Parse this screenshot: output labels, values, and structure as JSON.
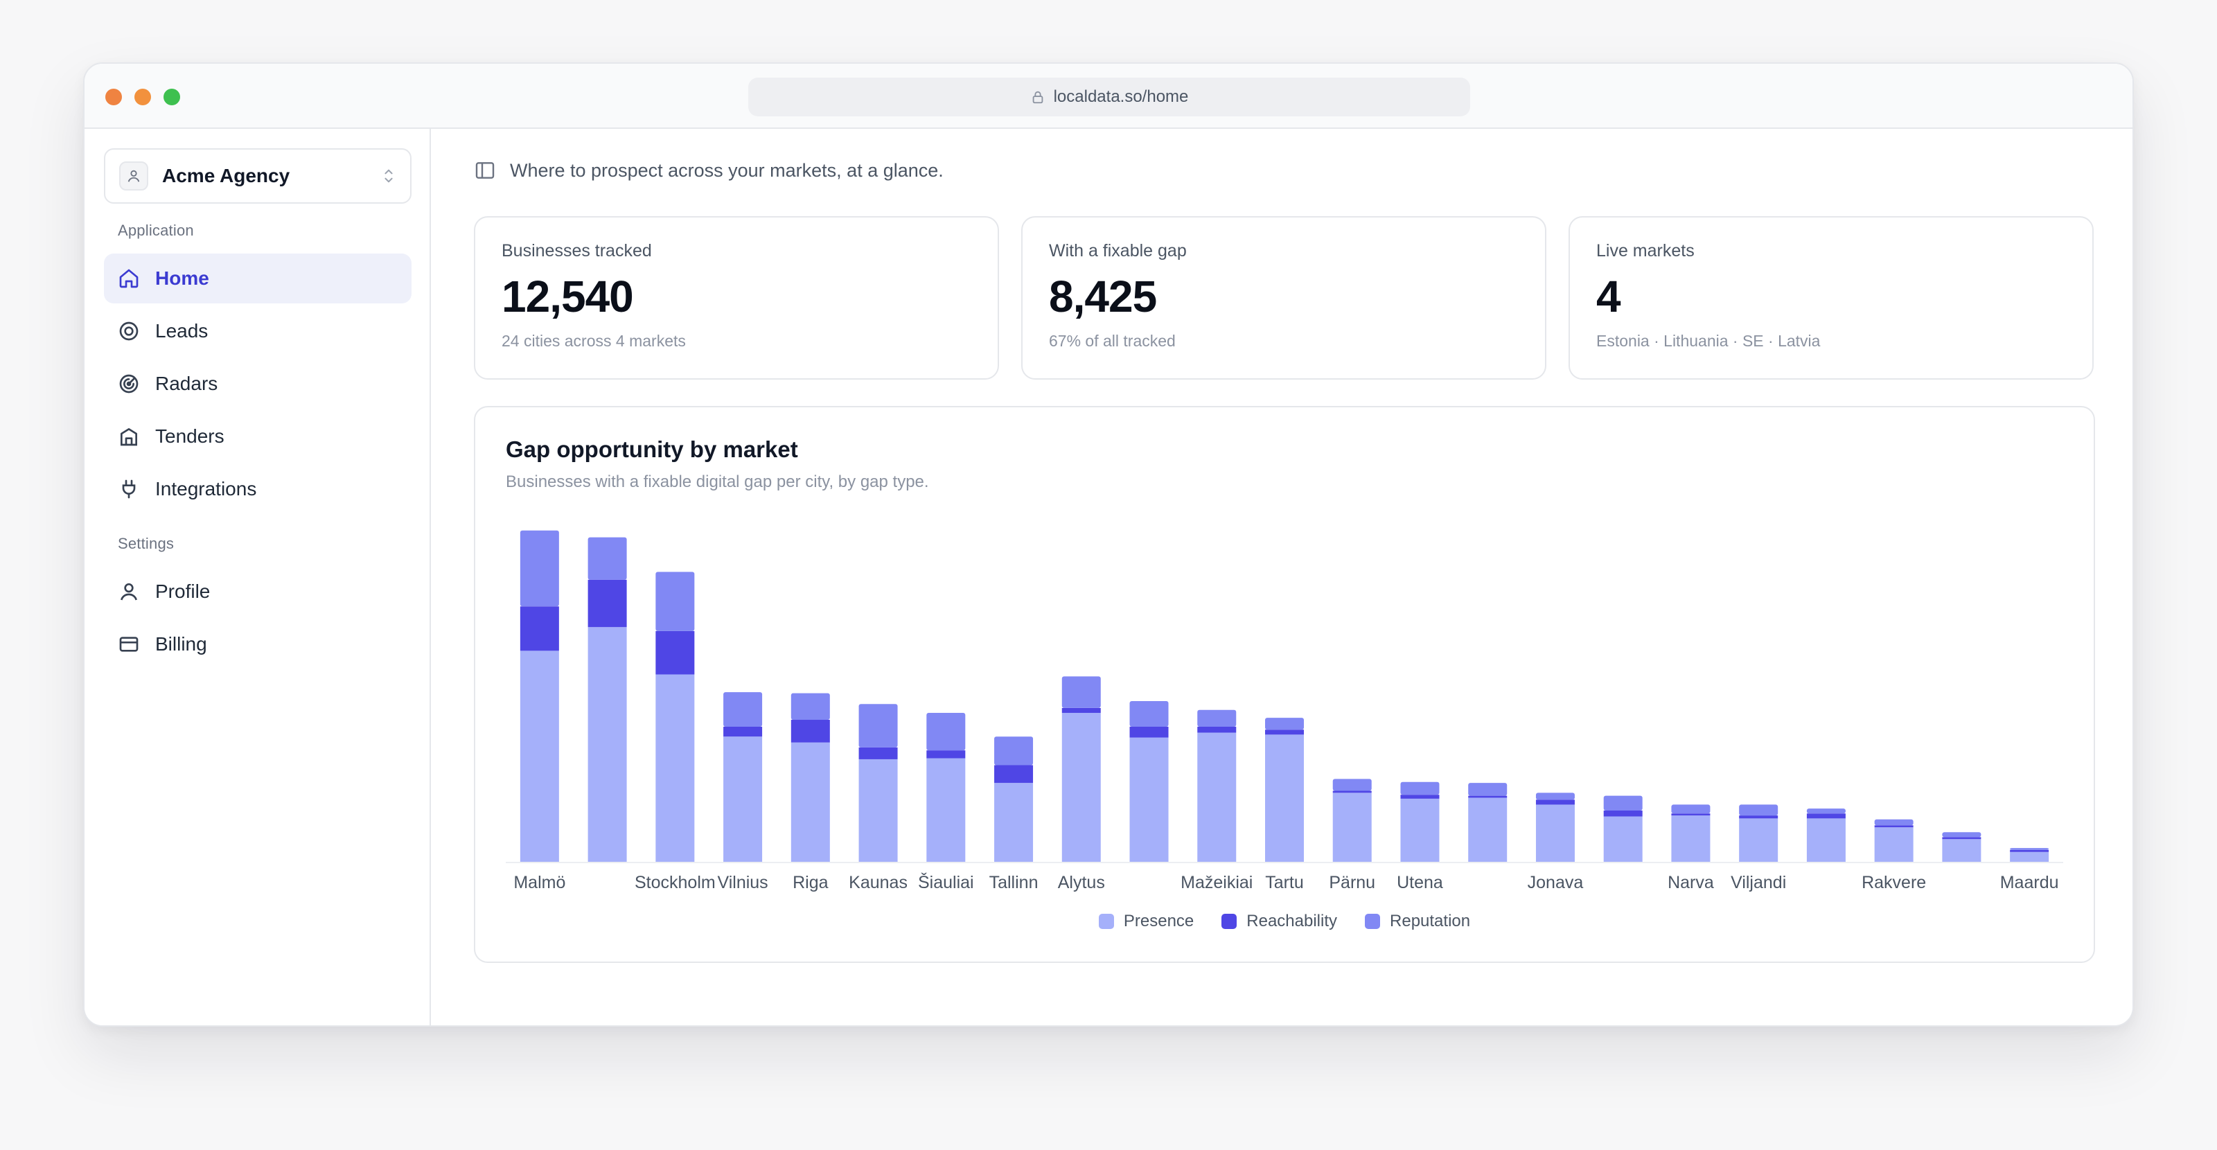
{
  "browser": {
    "url": "localdata.so/home"
  },
  "sidebar": {
    "account_name": "Acme Agency",
    "sections": {
      "application": "Application",
      "settings": "Settings"
    },
    "items": [
      {
        "label": "Home",
        "icon": "home-icon"
      },
      {
        "label": "Leads",
        "icon": "target-icon"
      },
      {
        "label": "Radars",
        "icon": "radar-icon"
      },
      {
        "label": "Tenders",
        "icon": "building-icon"
      },
      {
        "label": "Integrations",
        "icon": "plug-icon"
      },
      {
        "label": "Profile",
        "icon": "user-icon"
      },
      {
        "label": "Billing",
        "icon": "credit-card-icon"
      }
    ]
  },
  "header": {
    "tagline": "Where to prospect across your markets, at a glance."
  },
  "stats": [
    {
      "label": "Businesses tracked",
      "value": "12,540",
      "sub": "24 cities across 4 markets"
    },
    {
      "label": "With a fixable gap",
      "value": "8,425",
      "sub": "67% of all tracked"
    },
    {
      "label": "Live markets",
      "value": "4",
      "sub": "Estonia · Lithuania · SE · Latvia"
    }
  ],
  "chart": {
    "title": "Gap opportunity by market",
    "subtitle": "Businesses with a fixable digital gap per city, by gap type."
  },
  "chart_data": {
    "type": "bar",
    "stacked": true,
    "categories": [
      "Malmö",
      "",
      "Stockholm",
      "Vilnius",
      "Riga",
      "Kaunas",
      "Šiauliai",
      "Tallinn",
      "Alytus",
      "",
      "Mažeikiai",
      "Tartu",
      "Pärnu",
      "Utena",
      "",
      "Jonava",
      "",
      "Narva",
      "Viljandi",
      "",
      "Rakvere",
      "",
      "Maardu"
    ],
    "series": [
      {
        "name": "Presence",
        "color": "#a5b0fa",
        "values": [
          1070,
          1190,
          950,
          635,
          605,
          520,
          525,
          400,
          755,
          630,
          655,
          645,
          350,
          320,
          325,
          290,
          230,
          235,
          220,
          220,
          175,
          115,
          50
        ]
      },
      {
        "name": "Reachability",
        "color": "#4f46e5",
        "values": [
          225,
          240,
          220,
          50,
          115,
          60,
          40,
          90,
          25,
          55,
          30,
          25,
          10,
          20,
          10,
          25,
          30,
          10,
          15,
          25,
          10,
          10,
          10
        ]
      },
      {
        "name": "Reputation",
        "color": "#8188f4",
        "values": [
          385,
          215,
          300,
          175,
          135,
          220,
          190,
          145,
          160,
          130,
          85,
          60,
          60,
          65,
          65,
          35,
          75,
          45,
          55,
          25,
          30,
          25,
          10
        ]
      }
    ],
    "ylim": [
      0,
      1700
    ],
    "grid": false,
    "legend": "bottom-center"
  }
}
